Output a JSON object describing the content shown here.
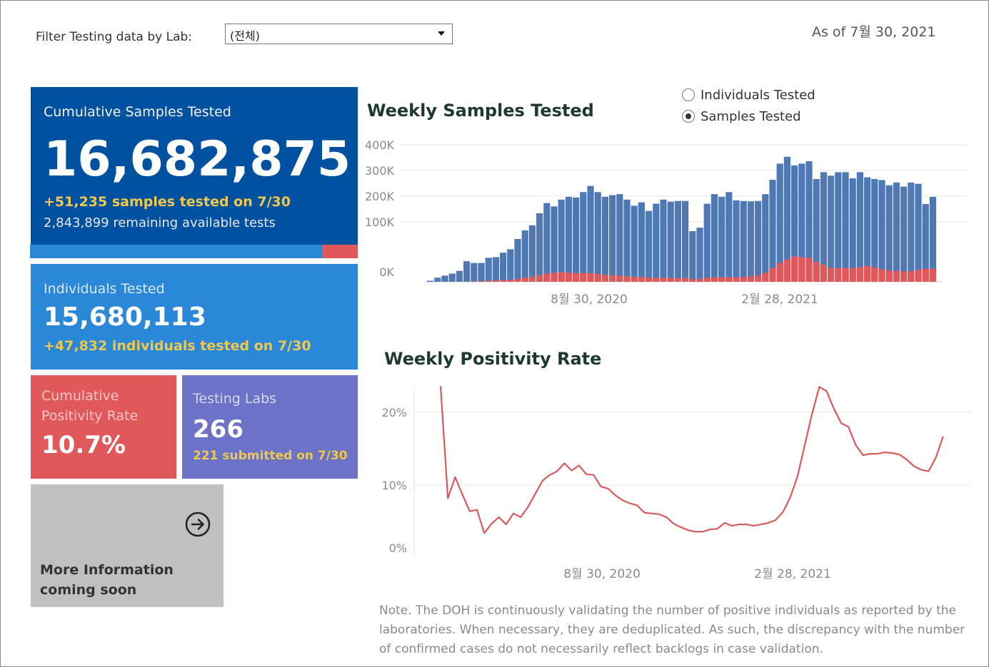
{
  "filter": {
    "label": "Filter Testing data by Lab:",
    "selected": "(전체)"
  },
  "as_of": "As of 7월 30, 2021",
  "cumulative": {
    "title": "Cumulative Samples Tested",
    "value": "16,682,875",
    "delta": "+51,235 samples tested on 7/30",
    "remaining": "2,843,899 remaining available tests",
    "used_fraction": 0.89
  },
  "individuals": {
    "title": "Individuals Tested",
    "value": "15,680,113",
    "delta": "+47,832  individuals  tested on 7/30"
  },
  "positivity": {
    "title": "Cumulative Positivity Rate",
    "value": "10.7%"
  },
  "labs": {
    "title": "Testing Labs",
    "value": "266",
    "delta": "221 submitted on 7/30"
  },
  "more": {
    "label": "More Information coming soon",
    "icon": "arrow-circle-right-icon"
  },
  "toggle": {
    "options": [
      "Individuals Tested",
      "Samples Tested"
    ],
    "selected": "Samples Tested"
  },
  "note": "Note. The DOH is continuously validating the number of positive individuals as reported by the laboratories. When necessary, they are deduplicated. As such, the discrepancy with the number of confirmed cases do not necessarily reflect backlogs in case validation.",
  "colors": {
    "samples_bar": "#4e79b4",
    "positive_bar": "#e05859",
    "positivity_line": "#d75a5b"
  },
  "chart_data": [
    {
      "type": "bar",
      "title": "Weekly Samples Tested",
      "yticks": [
        "400K",
        "300K",
        "200K",
        "100K",
        "0K"
      ],
      "xticks": [
        "8월 30, 2020",
        "2월 28, 2021"
      ],
      "ylim": [
        0,
        400000
      ],
      "stacked": true,
      "series": [
        {
          "values": [
            3000,
            12000,
            18000,
            24000,
            32000,
            60000,
            55000,
            55000,
            70000,
            72000,
            85000,
            95000,
            125000,
            150000,
            165000,
            200000,
            230000,
            220000,
            240000,
            248000,
            246000,
            262000,
            280000,
            262000,
            248000,
            253000,
            256000,
            240000,
            222000,
            232000,
            207000,
            228000,
            240000,
            234000,
            236000,
            236000,
            148000,
            158000,
            228000,
            256000,
            248000,
            262000,
            238000,
            236000,
            235000,
            236000,
            256000,
            298000,
            345000,
            365000,
            340000,
            345000,
            352000,
            300000,
            320000,
            310000,
            320000,
            320000,
            302000,
            320000,
            305000,
            300000,
            297000,
            282000,
            290000,
            278000,
            290000,
            286000,
            227000,
            248000
          ]
        },
        {
          "values": [
            0,
            0,
            0,
            0,
            0,
            0,
            1000,
            2000,
            3000,
            4000,
            5000,
            6000,
            8000,
            12000,
            14000,
            20000,
            24000,
            26000,
            28000,
            27000,
            25000,
            26000,
            25000,
            23000,
            20000,
            19000,
            18000,
            16000,
            14000,
            14000,
            12000,
            12000,
            12000,
            12000,
            11000,
            11000,
            8000,
            8000,
            12000,
            13000,
            13000,
            14000,
            13000,
            14000,
            16000,
            19000,
            26000,
            40000,
            55000,
            65000,
            74000,
            72000,
            70000,
            58000,
            50000,
            40000,
            40000,
            40000,
            40000,
            43000,
            46000,
            42000,
            37000,
            33000,
            32000,
            30000,
            31000,
            35000,
            38000,
            38000
          ]
        }
      ]
    },
    {
      "type": "line",
      "title": "Weekly Positivity Rate",
      "yticks": [
        "20%",
        "10%",
        "0%"
      ],
      "xticks": [
        "8월 30, 2020",
        "2월 28, 2021"
      ],
      "ylim": [
        0,
        20
      ],
      "x": [
        "2020-03-29",
        "2020-04-05",
        "2020-04-12",
        "2020-04-19",
        "2020-04-26",
        "2020-05-03",
        "2020-05-10",
        "2020-05-17",
        "2020-05-24",
        "2020-05-31",
        "2020-06-07",
        "2020-06-14",
        "2020-06-21",
        "2020-06-28",
        "2020-07-05",
        "2020-07-12",
        "2020-07-19",
        "2020-07-26",
        "2020-08-02",
        "2020-08-09",
        "2020-08-16",
        "2020-08-23",
        "2020-08-30",
        "2020-09-06",
        "2020-09-13",
        "2020-09-20",
        "2020-09-27",
        "2020-10-04",
        "2020-10-11",
        "2020-10-18",
        "2020-10-25",
        "2020-11-01",
        "2020-11-08",
        "2020-11-15",
        "2020-11-22",
        "2020-11-29",
        "2020-12-06",
        "2020-12-13",
        "2020-12-20",
        "2020-12-27",
        "2021-01-03",
        "2021-01-10",
        "2021-01-17",
        "2021-01-24",
        "2021-01-31",
        "2021-02-07",
        "2021-02-14",
        "2021-02-21",
        "2021-02-28",
        "2021-03-07",
        "2021-03-14",
        "2021-03-21",
        "2021-03-28",
        "2021-04-04",
        "2021-04-11",
        "2021-04-18",
        "2021-04-25",
        "2021-05-02",
        "2021-05-09",
        "2021-05-16",
        "2021-05-23",
        "2021-05-30",
        "2021-06-06",
        "2021-06-13",
        "2021-06-20",
        "2021-06-27",
        "2021-07-04",
        "2021-07-11",
        "2021-07-18",
        "2021-07-25"
      ],
      "values": [
        23.6,
        8.2,
        11.1,
        8.7,
        6.4,
        6.6,
        3.4,
        4.7,
        5.6,
        4.6,
        6.1,
        5.6,
        7.0,
        8.8,
        10.6,
        11.4,
        11.9,
        13.0,
        12.0,
        12.7,
        11.5,
        11.4,
        9.8,
        9.5,
        8.6,
        7.9,
        7.5,
        7.2,
        6.2,
        6.1,
        6.0,
        5.6,
        4.7,
        4.2,
        3.8,
        3.6,
        3.6,
        3.9,
        4.0,
        4.8,
        4.4,
        4.6,
        4.6,
        4.4,
        4.6,
        4.8,
        5.2,
        6.3,
        8.3,
        11.2,
        15.5,
        19.8,
        23.5,
        22.9,
        20.5,
        18.5,
        18.0,
        15.5,
        14.1,
        14.3,
        14.3,
        14.5,
        14.4,
        14.2,
        13.5,
        12.6,
        12.1,
        11.9,
        13.8,
        16.7
      ]
    }
  ]
}
